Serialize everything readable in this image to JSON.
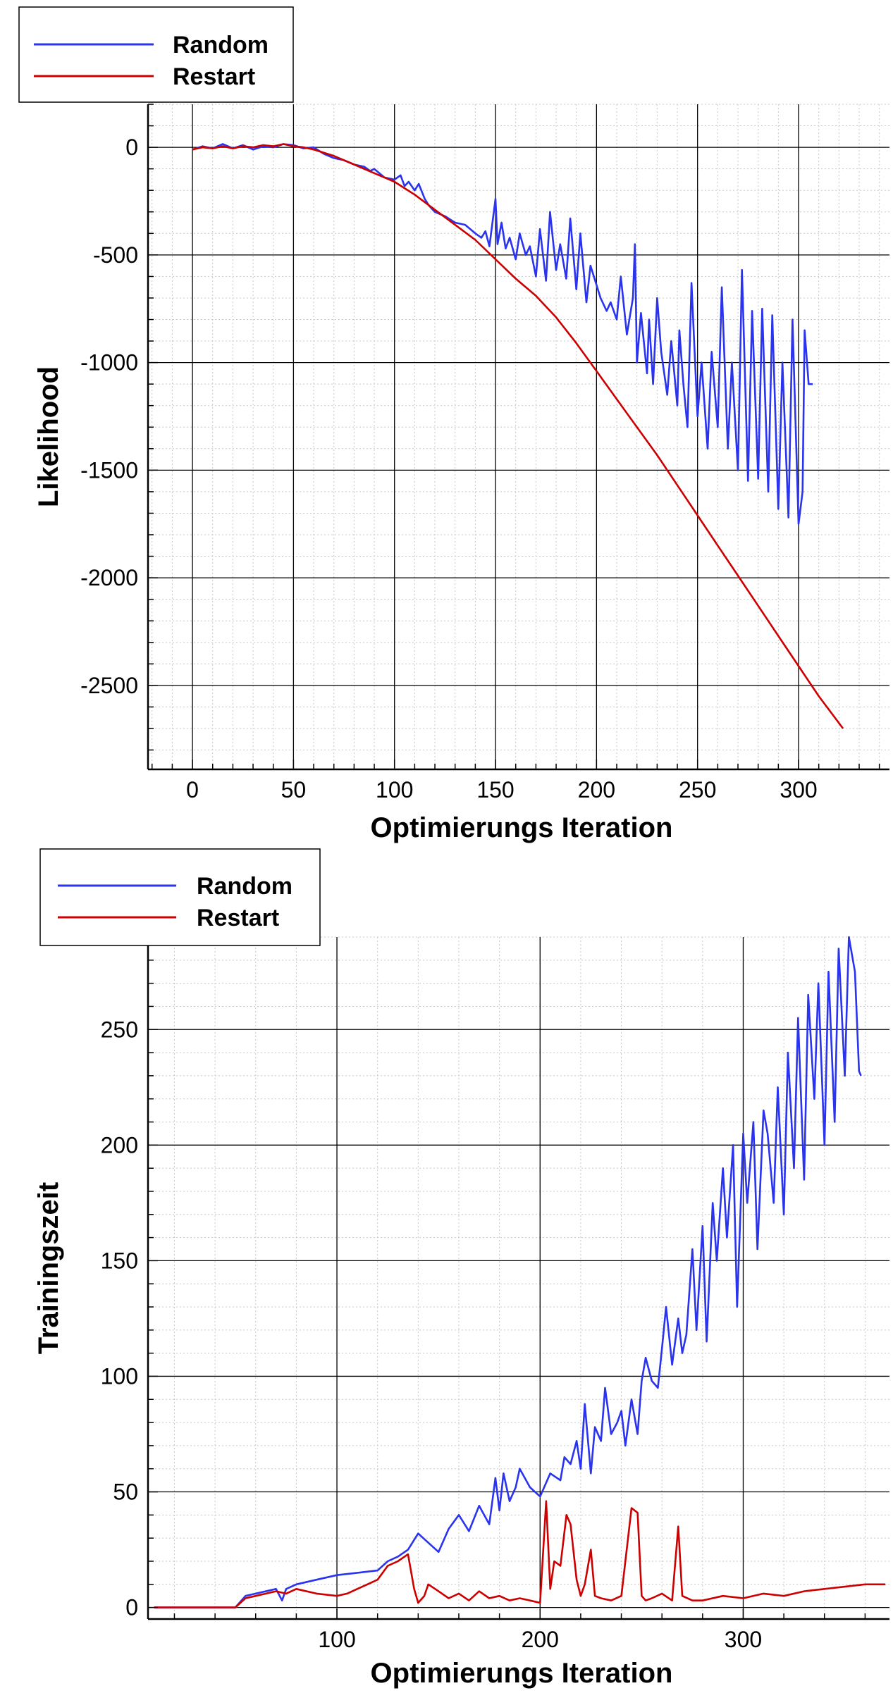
{
  "chart_data": [
    {
      "type": "line",
      "title": "",
      "xlabel": "Optimierungs Iteration",
      "ylabel": "Likelihood",
      "xlim": [
        -22,
        345
      ],
      "ylim": [
        -2890,
        200
      ],
      "xticks": [
        0,
        50,
        100,
        150,
        200,
        250,
        300
      ],
      "yticks": [
        0,
        -500,
        -1000,
        -1500,
        -2000,
        -2500
      ],
      "x_minor_step": 10,
      "y_minor_step": 100,
      "grid": true,
      "legend_position": "top-left",
      "legend": [
        "Random",
        "Restart"
      ],
      "series": [
        {
          "name": "Random",
          "color": "#2a33ee",
          "x": [
            0,
            5,
            10,
            15,
            20,
            25,
            30,
            35,
            40,
            45,
            50,
            55,
            60,
            65,
            70,
            75,
            80,
            85,
            88,
            90,
            95,
            100,
            103,
            105,
            107,
            110,
            112,
            115,
            117,
            120,
            125,
            130,
            135,
            140,
            143,
            145,
            147,
            150,
            151,
            153,
            155,
            157,
            160,
            162,
            165,
            167,
            170,
            172,
            175,
            177,
            180,
            182,
            185,
            187,
            190,
            192,
            195,
            197,
            200,
            202,
            205,
            207,
            210,
            212,
            215,
            218,
            219,
            220,
            222,
            225,
            226,
            228,
            230,
            232,
            235,
            237,
            240,
            241,
            243,
            245,
            247,
            250,
            252,
            255,
            257,
            260,
            262,
            265,
            267,
            270,
            272,
            275,
            277,
            280,
            282,
            285,
            287,
            290,
            292,
            295,
            297,
            300,
            302,
            303,
            305,
            307
          ],
          "values": [
            -10,
            5,
            -5,
            15,
            -5,
            10,
            -10,
            5,
            0,
            15,
            10,
            -5,
            0,
            -30,
            -50,
            -60,
            -80,
            -90,
            -110,
            -100,
            -140,
            -150,
            -130,
            -180,
            -160,
            -200,
            -170,
            -240,
            -270,
            -300,
            -320,
            -350,
            -360,
            -400,
            -420,
            -390,
            -460,
            -240,
            -450,
            -350,
            -470,
            -420,
            -520,
            -400,
            -500,
            -460,
            -600,
            -380,
            -620,
            -300,
            -570,
            -450,
            -610,
            -330,
            -660,
            -400,
            -720,
            -550,
            -640,
            -700,
            -760,
            -720,
            -800,
            -600,
            -870,
            -700,
            -450,
            -1000,
            -770,
            -1050,
            -800,
            -1100,
            -700,
            -950,
            -1150,
            -900,
            -1200,
            -850,
            -1100,
            -1300,
            -630,
            -1250,
            -1000,
            -1400,
            -950,
            -1300,
            -650,
            -1400,
            -1000,
            -1500,
            -570,
            -1550,
            -760,
            -1540,
            -750,
            -1600,
            -780,
            -1680,
            -1000,
            -1720,
            -800,
            -1750,
            -1600,
            -850,
            -1100,
            -1100
          ]
        },
        {
          "name": "Restart",
          "color": "#cc0000",
          "x": [
            0,
            5,
            10,
            15,
            20,
            25,
            30,
            35,
            40,
            45,
            50,
            55,
            60,
            70,
            80,
            90,
            100,
            110,
            120,
            130,
            140,
            150,
            160,
            170,
            180,
            190,
            200,
            210,
            220,
            230,
            240,
            250,
            260,
            270,
            280,
            290,
            300,
            310,
            322
          ],
          "values": [
            -10,
            0,
            -5,
            5,
            -5,
            5,
            0,
            10,
            5,
            15,
            5,
            0,
            -10,
            -40,
            -80,
            -120,
            -160,
            -220,
            -290,
            -360,
            -430,
            -520,
            -610,
            -690,
            -790,
            -910,
            -1040,
            -1170,
            -1300,
            -1430,
            -1570,
            -1710,
            -1850,
            -1990,
            -2130,
            -2270,
            -2410,
            -2550,
            -2700
          ]
        }
      ]
    },
    {
      "type": "line",
      "title": "",
      "xlabel": "Optimierungs Iteration",
      "ylabel": "Trainingszeit",
      "xlim": [
        7,
        372
      ],
      "ylim": [
        -5,
        290
      ],
      "xticks": [
        100,
        200,
        300
      ],
      "yticks": [
        0,
        50,
        100,
        150,
        200,
        250
      ],
      "x_minor_step": 20,
      "y_minor_step": 10,
      "grid": true,
      "legend_position": "top-left",
      "legend": [
        "Random",
        "Restart"
      ],
      "series": [
        {
          "name": "Random",
          "color": "#2a33ee",
          "x": [
            10,
            20,
            30,
            40,
            50,
            55,
            60,
            70,
            73,
            75,
            80,
            90,
            100,
            110,
            120,
            125,
            130,
            135,
            140,
            145,
            150,
            155,
            160,
            165,
            170,
            175,
            178,
            180,
            182,
            185,
            188,
            190,
            195,
            200,
            205,
            210,
            212,
            215,
            218,
            220,
            222,
            225,
            227,
            230,
            232,
            235,
            238,
            240,
            242,
            245,
            248,
            250,
            252,
            255,
            258,
            260,
            262,
            265,
            268,
            270,
            272,
            275,
            277,
            280,
            282,
            285,
            287,
            290,
            292,
            295,
            297,
            300,
            302,
            305,
            307,
            310,
            312,
            315,
            317,
            320,
            322,
            325,
            327,
            330,
            332,
            335,
            337,
            340,
            342,
            345,
            347,
            350,
            352,
            355,
            357,
            358
          ],
          "values": [
            0,
            0,
            0,
            0,
            0,
            5,
            6,
            8,
            3,
            8,
            10,
            12,
            14,
            15,
            16,
            20,
            22,
            25,
            32,
            28,
            24,
            34,
            40,
            33,
            44,
            36,
            56,
            42,
            58,
            46,
            52,
            60,
            52,
            48,
            58,
            55,
            65,
            62,
            72,
            60,
            88,
            58,
            78,
            72,
            95,
            75,
            80,
            85,
            70,
            90,
            75,
            98,
            108,
            98,
            95,
            112,
            130,
            105,
            125,
            110,
            118,
            155,
            120,
            165,
            115,
            175,
            150,
            190,
            160,
            200,
            130,
            205,
            175,
            210,
            155,
            215,
            205,
            175,
            225,
            170,
            240,
            190,
            255,
            185,
            265,
            220,
            270,
            200,
            275,
            210,
            285,
            230,
            290,
            275,
            232,
            230
          ]
        },
        {
          "name": "Restart",
          "color": "#cc0000",
          "x": [
            10,
            20,
            30,
            40,
            50,
            55,
            60,
            70,
            75,
            80,
            90,
            100,
            105,
            110,
            115,
            120,
            125,
            130,
            135,
            138,
            140,
            143,
            145,
            150,
            155,
            160,
            165,
            170,
            175,
            180,
            185,
            190,
            195,
            200,
            203,
            205,
            207,
            210,
            213,
            215,
            218,
            220,
            222,
            225,
            227,
            230,
            235,
            240,
            245,
            248,
            250,
            252,
            255,
            260,
            265,
            268,
            270,
            275,
            280,
            290,
            300,
            310,
            320,
            330,
            340,
            350,
            360,
            370
          ],
          "values": [
            0,
            0,
            0,
            0,
            0,
            4,
            5,
            7,
            6,
            8,
            6,
            5,
            6,
            8,
            10,
            12,
            18,
            20,
            23,
            8,
            2,
            5,
            10,
            7,
            4,
            6,
            3,
            7,
            4,
            5,
            3,
            4,
            3,
            2,
            46,
            8,
            20,
            18,
            40,
            36,
            12,
            5,
            10,
            25,
            5,
            4,
            3,
            5,
            43,
            41,
            5,
            3,
            4,
            6,
            3,
            35,
            5,
            3,
            3,
            5,
            4,
            6,
            5,
            7,
            8,
            9,
            10,
            10
          ]
        }
      ]
    }
  ]
}
